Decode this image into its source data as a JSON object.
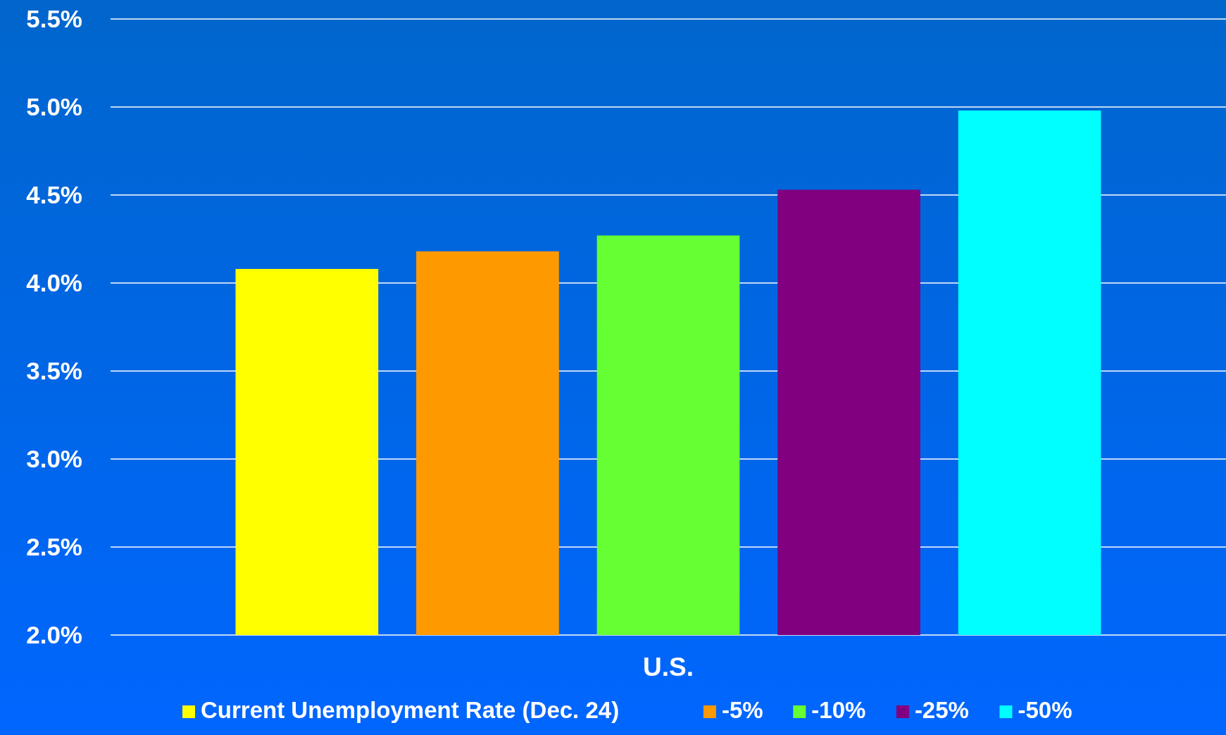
{
  "chart_data": {
    "type": "bar",
    "categories": [
      "U.S."
    ],
    "series": [
      {
        "name": "Current Unemployment Rate (Dec. 24)",
        "color": "#ffff00",
        "values": [
          4.08
        ]
      },
      {
        "name": "-5%",
        "color": "#ff9900",
        "values": [
          4.18
        ]
      },
      {
        "name": "-10%",
        "color": "#66ff33",
        "values": [
          4.27
        ]
      },
      {
        "name": "-25%",
        "color": "#800080",
        "values": [
          4.53
        ]
      },
      {
        "name": "-50%",
        "color": "#00ffff",
        "values": [
          4.98
        ]
      }
    ],
    "ylim": [
      2.0,
      5.5
    ],
    "yticks": [
      {
        "value": 2.0,
        "label": "2.0%"
      },
      {
        "value": 2.5,
        "label": "2.5%"
      },
      {
        "value": 3.0,
        "label": "3.0%"
      },
      {
        "value": 3.5,
        "label": "3.5%"
      },
      {
        "value": 4.0,
        "label": "4.0%"
      },
      {
        "value": 4.5,
        "label": "4.5%"
      },
      {
        "value": 5.0,
        "label": "5.0%"
      },
      {
        "value": 5.5,
        "label": "5.5%"
      }
    ],
    "grid": "y",
    "legend": "bottom"
  }
}
